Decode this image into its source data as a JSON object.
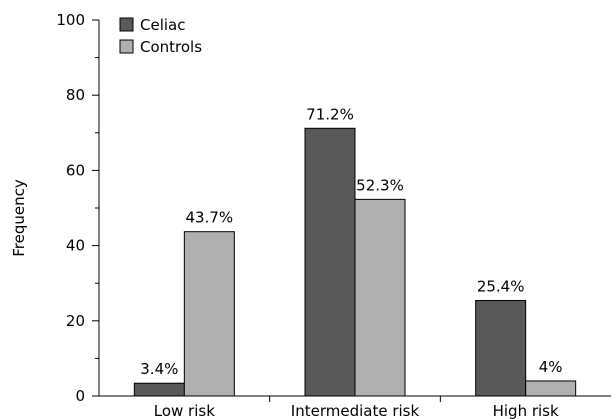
{
  "chart_data": {
    "type": "bar",
    "categories": [
      "Low risk",
      "Intermediate risk",
      "High risk"
    ],
    "series": [
      {
        "name": "Celiac",
        "values": [
          3.4,
          71.2,
          25.4
        ],
        "labels": [
          "3.4%",
          "71.2%",
          "25.4%"
        ],
        "color": "#595959"
      },
      {
        "name": "Controls",
        "values": [
          43.7,
          52.3,
          4
        ],
        "labels": [
          "43.7%",
          "52.3%",
          "4%"
        ],
        "color": "#b0b0b0"
      }
    ],
    "ylabel": "Frequency",
    "xlabel": "",
    "ylim": [
      0,
      100
    ],
    "yticks": [
      0,
      20,
      40,
      60,
      80,
      100
    ],
    "grid": false,
    "legend_position": "top-left"
  }
}
